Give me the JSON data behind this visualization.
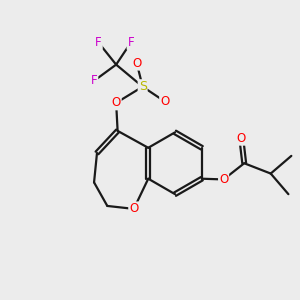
{
  "background_color": "#ececec",
  "bond_color": "#1a1a1a",
  "atom_colors": {
    "F": "#cc00cc",
    "S": "#b8b800",
    "O": "#ff0000",
    "C": "#1a1a1a"
  },
  "figsize": [
    3.0,
    3.0
  ],
  "dpi": 100
}
